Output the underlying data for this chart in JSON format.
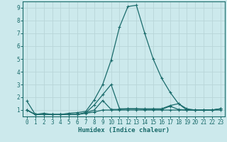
{
  "xlabel": "Humidex (Indice chaleur)",
  "xlim": [
    -0.5,
    23.5
  ],
  "ylim": [
    0.5,
    9.5
  ],
  "yticks": [
    1,
    2,
    3,
    4,
    5,
    6,
    7,
    8,
    9
  ],
  "xticks": [
    0,
    1,
    2,
    3,
    4,
    5,
    6,
    7,
    8,
    9,
    10,
    11,
    12,
    13,
    14,
    15,
    16,
    17,
    18,
    19,
    20,
    21,
    22,
    23
  ],
  "background_color": "#cce9ec",
  "grid_color": "#b8d5d8",
  "line_color": "#1a6b6b",
  "series": [
    {
      "x": [
        0,
        1,
        2,
        3,
        4,
        5,
        6,
        7,
        8,
        9,
        10,
        11,
        12,
        13,
        14,
        15,
        16,
        17,
        18,
        19,
        20,
        21,
        22,
        23
      ],
      "y": [
        1.7,
        0.65,
        0.75,
        0.65,
        0.65,
        0.75,
        0.8,
        0.9,
        1.8,
        3.0,
        4.9,
        7.5,
        9.1,
        9.2,
        7.0,
        5.0,
        3.5,
        2.4,
        1.5,
        1.1,
        1.0,
        1.0,
        1.0,
        1.1
      ]
    },
    {
      "x": [
        0,
        1,
        2,
        3,
        4,
        5,
        6,
        7,
        8,
        9,
        10,
        11,
        12,
        13,
        14,
        15,
        16,
        17,
        18,
        19,
        20,
        21,
        22,
        23
      ],
      "y": [
        1.0,
        0.65,
        0.65,
        0.65,
        0.65,
        0.65,
        0.65,
        0.75,
        0.85,
        1.0,
        1.0,
        1.0,
        1.0,
        1.0,
        1.0,
        1.0,
        1.0,
        1.0,
        1.0,
        1.0,
        1.0,
        1.0,
        1.0,
        1.0
      ]
    },
    {
      "x": [
        0,
        1,
        2,
        3,
        4,
        5,
        6,
        7,
        8,
        9,
        10,
        11,
        12,
        13,
        14,
        15,
        16,
        17,
        18,
        19,
        20,
        21,
        22,
        23
      ],
      "y": [
        1.0,
        0.65,
        0.65,
        0.65,
        0.65,
        0.65,
        0.65,
        0.8,
        1.0,
        1.75,
        1.05,
        1.05,
        1.1,
        1.1,
        1.05,
        1.05,
        1.05,
        1.3,
        1.05,
        1.0,
        1.0,
        1.0,
        1.0,
        1.1
      ]
    },
    {
      "x": [
        0,
        1,
        2,
        3,
        4,
        5,
        6,
        7,
        8,
        9,
        10,
        11,
        12,
        13,
        14,
        15,
        16,
        17,
        18,
        19,
        20,
        21,
        22,
        23
      ],
      "y": [
        1.0,
        0.65,
        0.65,
        0.65,
        0.65,
        0.65,
        0.65,
        0.8,
        1.4,
        2.2,
        3.0,
        1.1,
        1.1,
        1.1,
        1.1,
        1.1,
        1.1,
        1.35,
        1.5,
        1.0,
        1.0,
        1.0,
        1.0,
        1.1
      ]
    }
  ]
}
